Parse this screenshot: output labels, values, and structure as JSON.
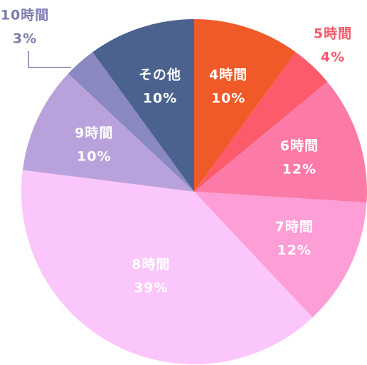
{
  "chart_data": {
    "type": "pie",
    "categories": [
      "4時間",
      "5時間",
      "6時間",
      "7時間",
      "8時間",
      "9時間",
      "10時間",
      "その他"
    ],
    "values": [
      10,
      4,
      12,
      12,
      39,
      10,
      3,
      10
    ],
    "value_labels": [
      "10%",
      "4%",
      "12%",
      "12%",
      "39%",
      "10%",
      "3%",
      "10%"
    ],
    "colors": [
      "#f05a28",
      "#fb5b6a",
      "#fb7aa8",
      "#fd9fd6",
      "#fbc6fb",
      "#b9a2dc",
      "#8a88c0",
      "#4a628d"
    ]
  }
}
